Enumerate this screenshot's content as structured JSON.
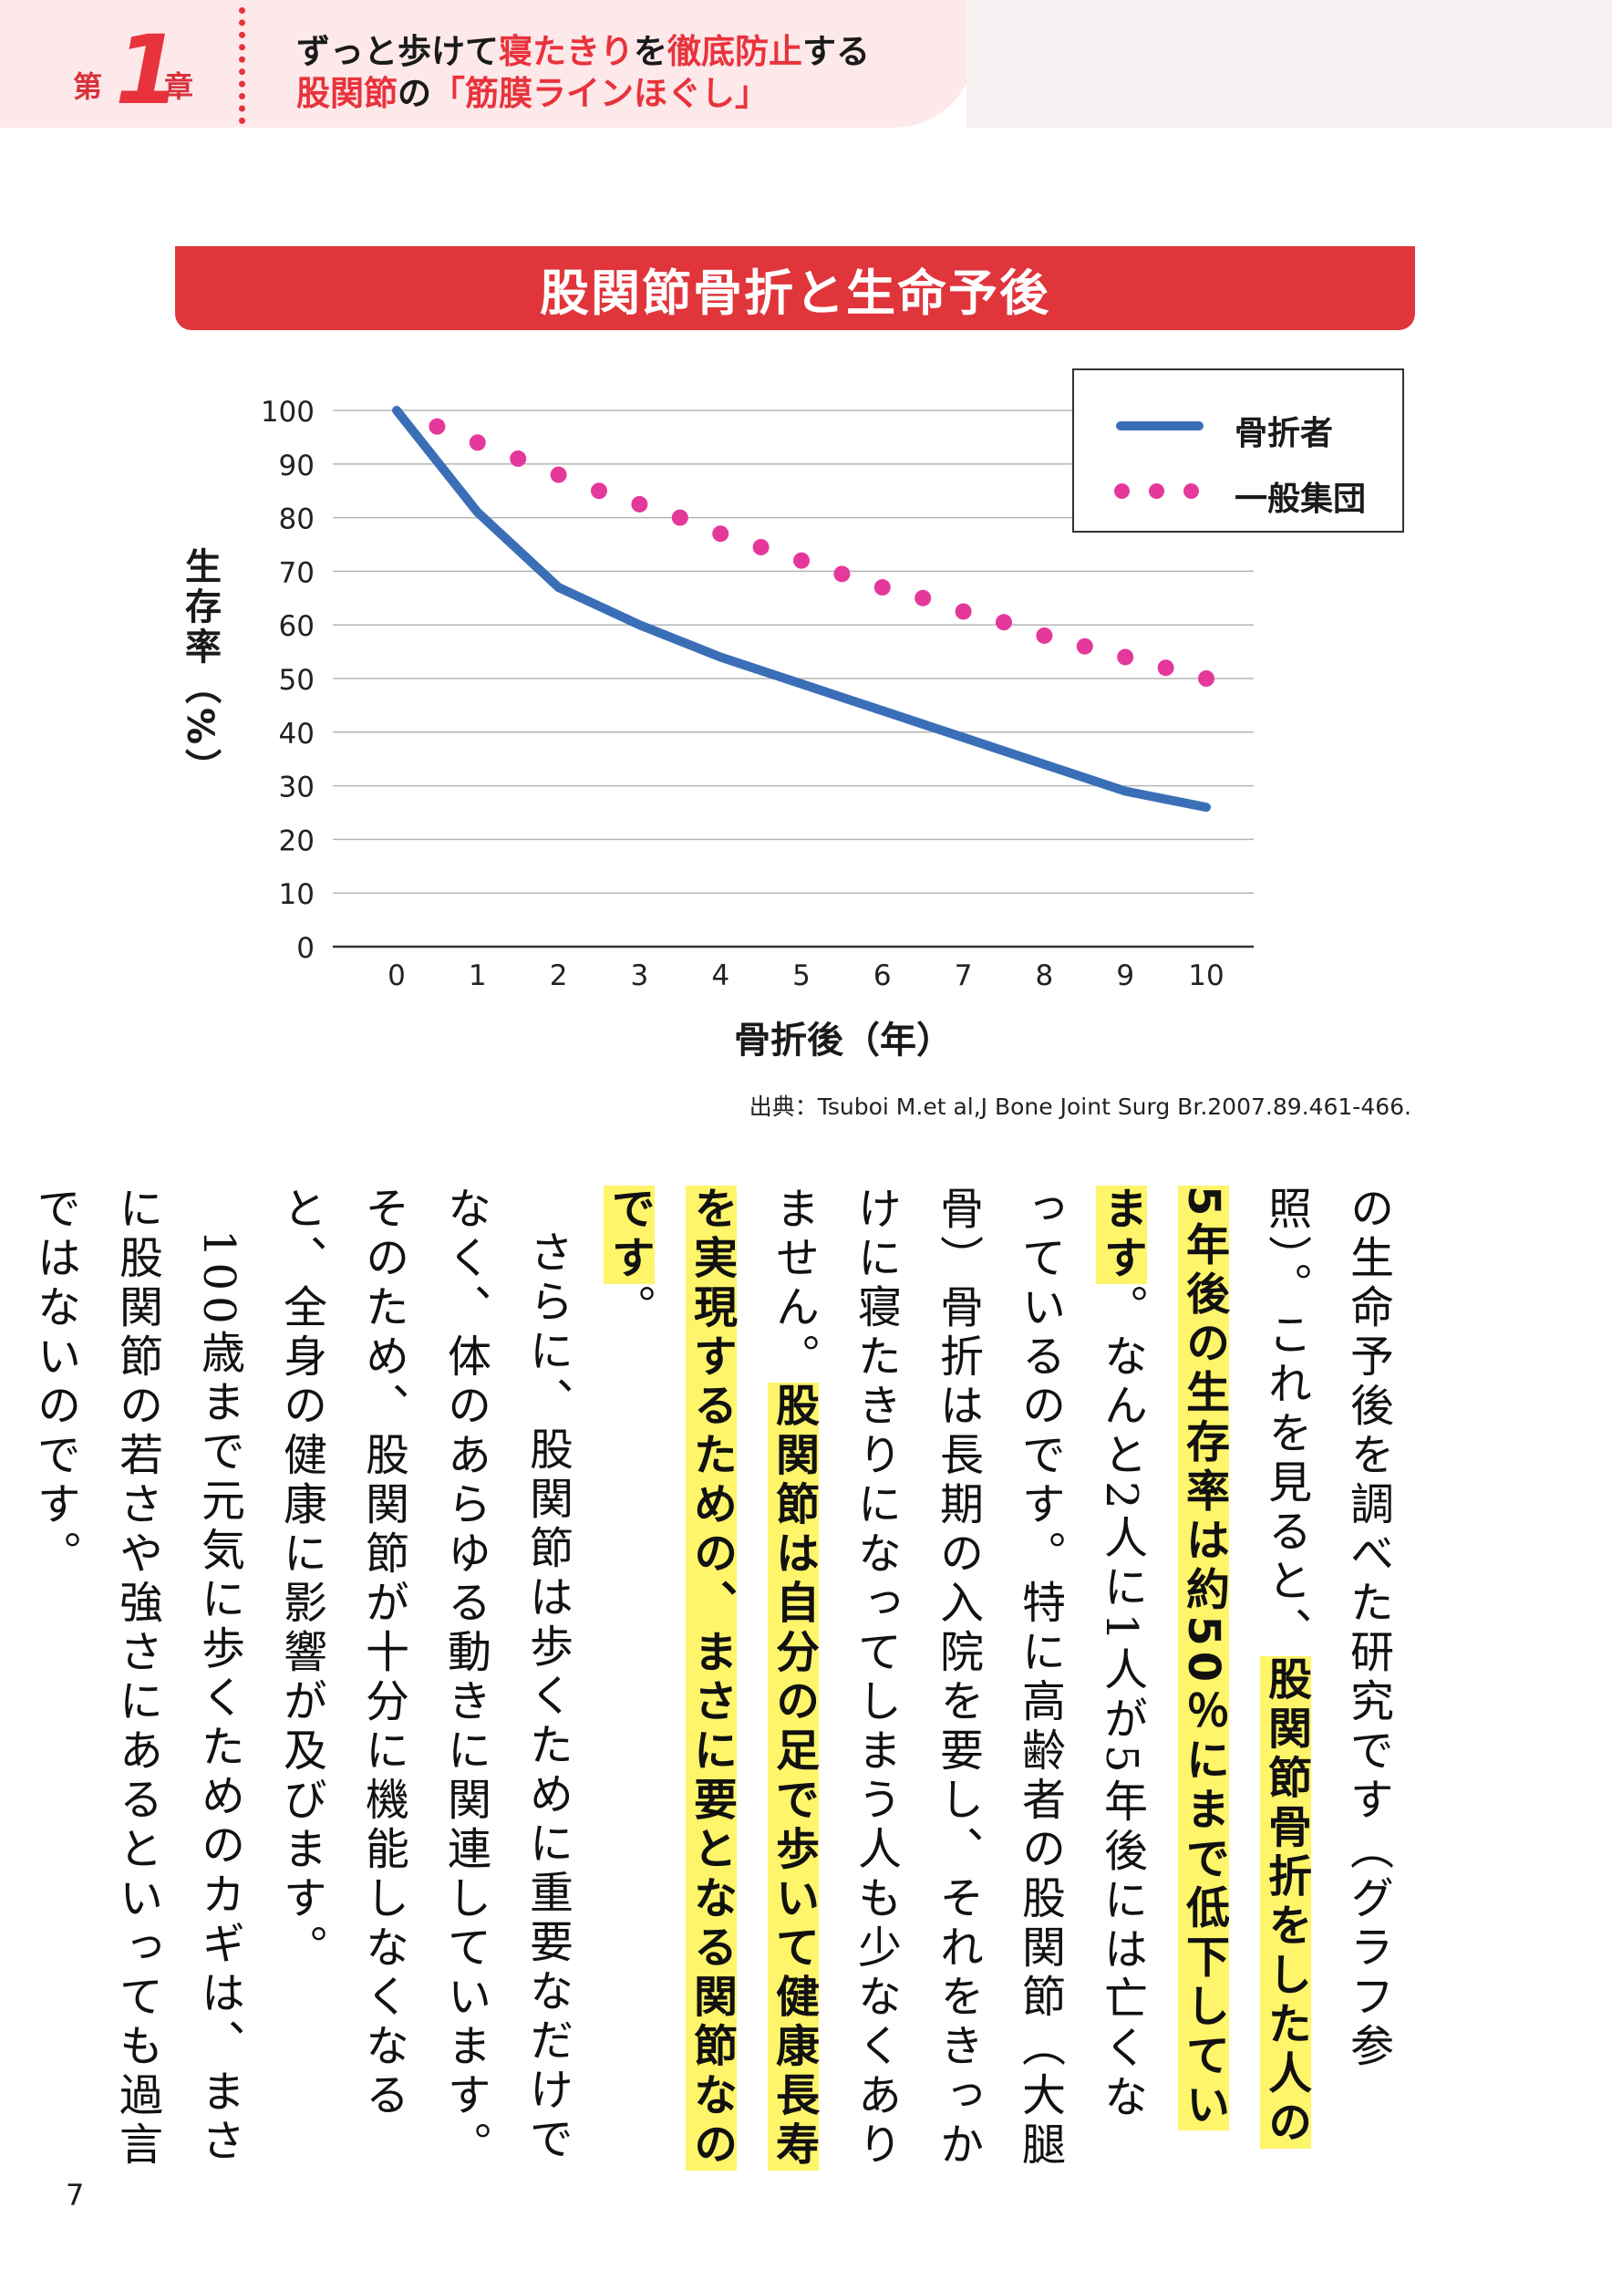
{
  "header": {
    "chapter_prefix": "第",
    "chapter_number": "1",
    "chapter_suffix": "章",
    "title_line1_a": "ずっと歩けて",
    "title_line1_b": "寝たきり",
    "title_line1_c": "を",
    "title_line1_d": "徹底防止",
    "title_line1_e": "する",
    "title_line2_a": "股関節",
    "title_line2_b": "の",
    "title_line2_c": "「筋膜ラインほぐし」"
  },
  "banner_title": "股関節骨折と生命予後",
  "chart_data": {
    "type": "line",
    "title": "股関節骨折と生命予後",
    "xlabel": "骨折後（年）",
    "ylabel": "生存率（%）",
    "xlim": [
      0,
      10
    ],
    "ylim": [
      0,
      100
    ],
    "x_ticks": [
      "0",
      "1",
      "2",
      "3",
      "4",
      "5",
      "6",
      "7",
      "8",
      "9",
      "10"
    ],
    "y_ticks": [
      "0",
      "10",
      "20",
      "30",
      "40",
      "50",
      "60",
      "70",
      "80",
      "90",
      "100"
    ],
    "grid": true,
    "legend_position": "top-right",
    "series": [
      {
        "name": "骨折者",
        "style": "solid",
        "color": "#3a6fb8",
        "x": [
          0,
          1,
          2,
          3,
          4,
          5,
          6,
          7,
          8,
          9,
          10
        ],
        "values": [
          100,
          81,
          67,
          60,
          54,
          49,
          44,
          39,
          34,
          29,
          26
        ]
      },
      {
        "name": "一般集団",
        "style": "dotted",
        "color": "#e4399b",
        "x": [
          0.5,
          1,
          1.5,
          2,
          2.5,
          3,
          3.5,
          4,
          4.5,
          5,
          5.5,
          6,
          6.5,
          7,
          7.5,
          8,
          8.5,
          9,
          9.5,
          10
        ],
        "values": [
          97,
          94,
          91,
          88,
          85,
          82.5,
          80,
          77,
          74.5,
          72,
          69.5,
          67,
          65,
          62.5,
          60.5,
          58,
          56,
          54,
          52,
          50
        ]
      }
    ]
  },
  "source": "出典：Tsuboi M.et al,J Bone Joint Surg Br.2007.89.461-466.",
  "body": {
    "p1_a": "の生命予後を調べた研究です（グラフ参照）。これを見ると、",
    "p1_hl1": "股関節骨折をした人の5年後の生存率は約50％にまで低下しています",
    "p1_b": "。なんと2人に1人が5年後には亡くなっているのです。特に高齢者の股関節（大腿骨）骨折は長期の入院を要し、それをきっかけに寝たきりになってしまう人も少なくありません。",
    "p1_hl2": "股関節は自分の足で歩いて健康長寿を実現するための、まさに要となる関節なのです",
    "p1_c": "。",
    "p2": "さらに、股関節は歩くために重要なだけでなく、体のあらゆる動きに関連しています。そのため、股関節が十分に機能しなくなると、全身の健康に影響が及びます。",
    "p3": "100歳まで元気に歩くためのカギは、まさに股関節の若さや強さにあるといっても過言ではないのです。"
  },
  "page_number": "7"
}
